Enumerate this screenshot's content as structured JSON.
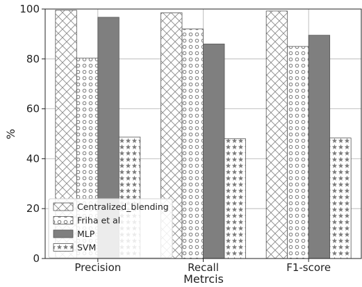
{
  "chart_data": {
    "type": "bar",
    "title": "",
    "xlabel": "Metrcis",
    "ylabel": "%",
    "ylim": [
      0,
      100
    ],
    "yticks": [
      0,
      20,
      40,
      60,
      80,
      100
    ],
    "grid": true,
    "legend_position": "bottom-left",
    "categories": [
      "Precision",
      "Recall",
      "F1-score"
    ],
    "series": [
      {
        "name": "Centralized_blending",
        "values": [
          99.5,
          98.5,
          99.2
        ],
        "pattern": "crosshatch",
        "color": "#ffffff"
      },
      {
        "name": "Friha et al",
        "values": [
          80.3,
          92.0,
          85.0
        ],
        "pattern": "circles",
        "color": "#ffffff"
      },
      {
        "name": "MLP",
        "values": [
          96.7,
          86.0,
          89.5
        ],
        "pattern": "solid",
        "color": "#7f7f7f"
      },
      {
        "name": "SVM",
        "values": [
          48.7,
          48.0,
          48.3
        ],
        "pattern": "stars",
        "color": "#ffffff"
      }
    ]
  }
}
